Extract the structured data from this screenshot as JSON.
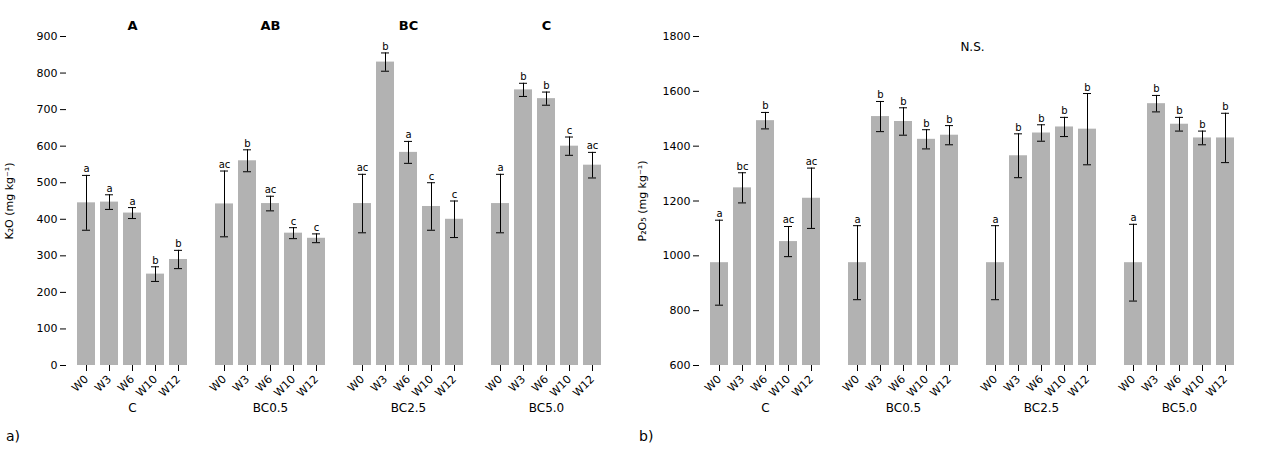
{
  "chart_data": [
    {
      "type": "bar",
      "ylabel": "K₂O (mg kg⁻¹)",
      "ylim": [
        0,
        900
      ],
      "yticks": [
        0,
        100,
        200,
        300,
        400,
        500,
        600,
        700,
        800,
        900
      ],
      "categories": [
        "C",
        "BC0.5",
        "BC2.5",
        "BC5.0"
      ],
      "color": "#b2b2b2",
      "series": [
        {
          "name": "W0",
          "values": [
            445,
            442,
            443,
            443
          ],
          "errors": [
            75,
            90,
            80,
            80
          ],
          "letters": [
            "a",
            "ac",
            "ac",
            "a"
          ]
        },
        {
          "name": "W3",
          "values": [
            447,
            560,
            830,
            754
          ],
          "errors": [
            20,
            30,
            25,
            18
          ],
          "letters": [
            "a",
            "b",
            "b",
            "b"
          ]
        },
        {
          "name": "W6",
          "values": [
            417,
            443,
            583,
            730
          ],
          "errors": [
            15,
            20,
            30,
            18
          ],
          "letters": [
            "a",
            "ac",
            "a",
            "b"
          ]
        },
        {
          "name": "W10",
          "values": [
            250,
            362,
            435,
            600
          ],
          "errors": [
            20,
            15,
            65,
            25
          ],
          "letters": [
            "b",
            "c",
            "c",
            "c"
          ]
        },
        {
          "name": "W12",
          "values": [
            290,
            348,
            400,
            548
          ],
          "errors": [
            25,
            12,
            50,
            35
          ],
          "letters": [
            "b",
            "c",
            "c",
            "ac"
          ]
        }
      ],
      "group_letters": [
        "A",
        "AB",
        "BC",
        "C"
      ],
      "caption": "a)"
    },
    {
      "type": "bar",
      "ylabel": "P₂O₅ (mg kg⁻¹)",
      "ylim": [
        600,
        1800
      ],
      "yticks": [
        600,
        800,
        1000,
        1200,
        1400,
        1600,
        1800
      ],
      "categories": [
        "C",
        "BC0.5",
        "BC2.5",
        "BC5.0"
      ],
      "color": "#b2b2b2",
      "series": [
        {
          "name": "W0",
          "values": [
            975,
            975,
            975,
            975
          ],
          "errors": [
            155,
            135,
            135,
            140
          ],
          "letters": [
            "a",
            "a",
            "a",
            "a"
          ]
        },
        {
          "name": "W3",
          "values": [
            1248,
            1508,
            1365,
            1555
          ],
          "errors": [
            55,
            55,
            80,
            30
          ],
          "letters": [
            "bc",
            "b",
            "b",
            "b"
          ]
        },
        {
          "name": "W6",
          "values": [
            1493,
            1490,
            1448,
            1480
          ],
          "errors": [
            30,
            50,
            30,
            25
          ],
          "letters": [
            "b",
            "b",
            "b",
            "b"
          ]
        },
        {
          "name": "W10",
          "values": [
            1052,
            1425,
            1470,
            1430
          ],
          "errors": [
            55,
            35,
            35,
            25
          ],
          "letters": [
            "ac",
            "b",
            "b",
            "b"
          ]
        },
        {
          "name": "W12",
          "values": [
            1210,
            1440,
            1462,
            1430
          ],
          "errors": [
            110,
            35,
            130,
            90
          ],
          "letters": [
            "ac",
            "b",
            "b",
            "b"
          ]
        }
      ],
      "annotation": "N.S.",
      "caption": "b)"
    }
  ]
}
